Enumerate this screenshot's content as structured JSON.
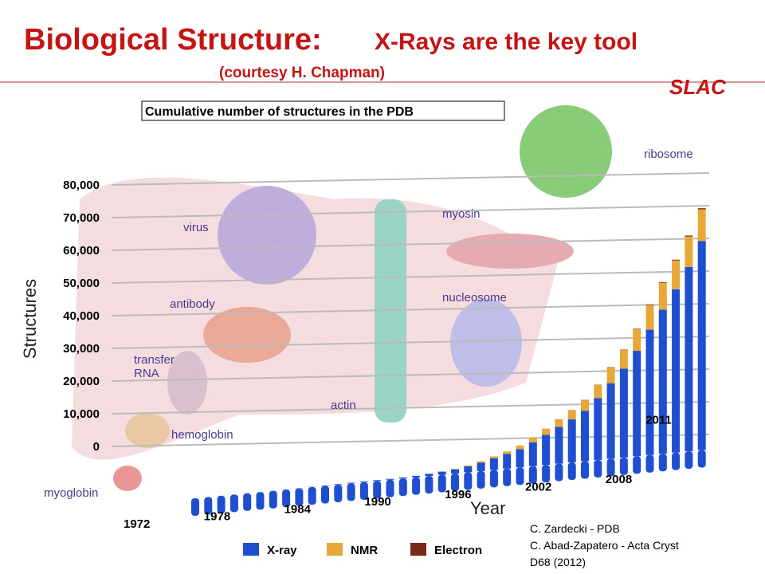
{
  "slide": {
    "title": "Biological Structure:",
    "subtitle": "X-Rays are the key tool",
    "courtesy": "(courtesy  H. Chapman)",
    "logo": "SLAC",
    "credits": [
      "C. Zardecki  - PDB",
      "C. Abad-Zapatero  - Acta Cryst",
      "D68  (2012)"
    ],
    "molecules": [
      "ribosome",
      "myosin",
      "virus",
      "nucleosome",
      "antibody",
      "transfer RNA",
      "actin",
      "hemoglobin",
      "myoglobin"
    ]
  },
  "chart_data": {
    "type": "bar",
    "stacked": true,
    "title": "Cumulative number of structures in the PDB",
    "y_label": "Structures",
    "x_label": "Year",
    "categories": [
      "1972",
      null,
      null,
      null,
      null,
      null,
      "1978",
      null,
      null,
      null,
      null,
      null,
      "1984",
      null,
      null,
      null,
      null,
      null,
      "1990",
      null,
      null,
      null,
      null,
      null,
      "1996",
      null,
      null,
      null,
      null,
      null,
      "2002",
      null,
      null,
      null,
      null,
      null,
      "2008",
      null,
      null,
      "2011"
    ],
    "series": [
      {
        "name": "X-ray",
        "color": "#1f4fd1",
        "values": [
          7,
          9,
          12,
          13,
          13,
          23,
          37,
          61,
          69,
          92,
          134,
          172,
          209,
          239,
          253,
          265,
          313,
          443,
          672,
          950,
          1294,
          1850,
          2600,
          3500,
          4460,
          5595,
          7290,
          9180,
          11270,
          13160,
          15440,
          18920,
          23100,
          27180,
          32260,
          38340,
          44100,
          49960,
          56420,
          63970
        ]
      },
      {
        "name": "NMR",
        "color": "#e8a838",
        "values": [
          0,
          0,
          0,
          0,
          0,
          0,
          0,
          0,
          0,
          0,
          0,
          0,
          0,
          0,
          0,
          0,
          5,
          20,
          60,
          100,
          150,
          250,
          400,
          600,
          800,
          1100,
          1500,
          1900,
          2300,
          2800,
          3300,
          4000,
          4800,
          5700,
          6600,
          7500,
          8200,
          8800,
          9300,
          9700
        ]
      },
      {
        "name": "Electron",
        "color": "#7a2a18",
        "values": [
          0,
          0,
          0,
          0,
          0,
          0,
          0,
          0,
          0,
          0,
          0,
          0,
          0,
          0,
          0,
          0,
          0,
          0,
          0,
          0,
          0,
          0,
          0,
          0,
          0,
          5,
          10,
          20,
          30,
          40,
          60,
          80,
          100,
          120,
          140,
          160,
          200,
          240,
          280,
          330
        ]
      }
    ],
    "ylim": [
      0,
      80000
    ],
    "yticks": [
      0,
      {
        "value": 10000,
        "label": "10,000"
      },
      {
        "value": 20000,
        "label": "20,000"
      },
      {
        "value": 30000,
        "label": "30,000"
      },
      {
        "value": 40000,
        "label": "40,000"
      },
      {
        "value": 50000,
        "label": "50,000"
      },
      {
        "value": 60000,
        "label": "60,000"
      },
      {
        "value": 70000,
        "label": "70,000"
      },
      {
        "value": 80000,
        "label": "80,000"
      }
    ],
    "grid": true,
    "legend": "bottom"
  }
}
